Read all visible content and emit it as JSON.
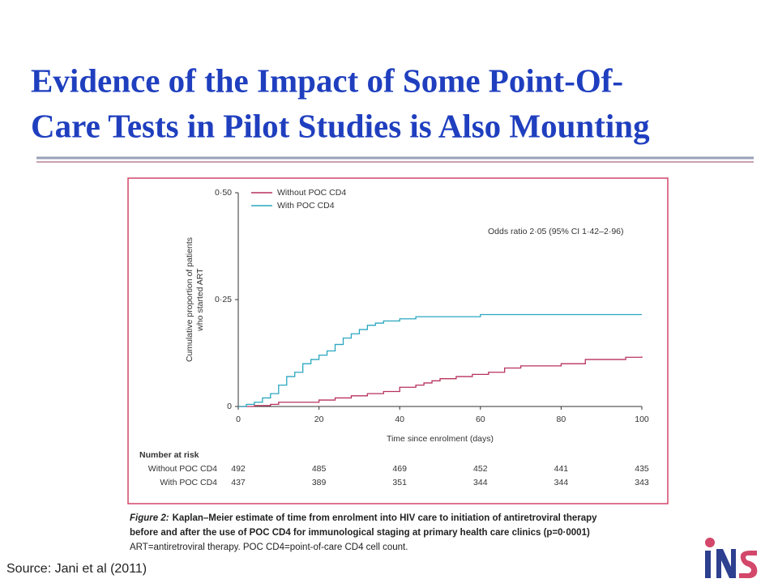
{
  "slide": {
    "title_lines": [
      "Evidence of the Impact of Some Point-Of-",
      "Care Tests in Pilot Studies is Also Mounting"
    ],
    "source": "Source: Jani et al (2011)"
  },
  "chart_data": {
    "type": "line",
    "step": true,
    "xlabel": "Time since enrolment (days)",
    "ylabel_lines": [
      "Cumulative proportion of patients",
      "who started ART"
    ],
    "annotation": "Odds ratio 2·05 (95% CI 1·42–2·96)",
    "legend": "top-left",
    "xlim": [
      0,
      100
    ],
    "ylim": [
      0,
      0.5
    ],
    "xticks": [
      0,
      20,
      40,
      60,
      80,
      100
    ],
    "yticks": [
      {
        "value": 0,
        "label": "0"
      },
      {
        "value": 0.25,
        "label": "0·25"
      },
      {
        "value": 0.5,
        "label": "0·50"
      }
    ],
    "series": [
      {
        "name": "Without POC CD4",
        "color": "#b8325c",
        "x": [
          0,
          4,
          8,
          10,
          20,
          24,
          28,
          32,
          36,
          40,
          44,
          46,
          48,
          50,
          54,
          58,
          62,
          66,
          70,
          80,
          86,
          96,
          100
        ],
        "values": [
          0,
          0.002,
          0.005,
          0.01,
          0.015,
          0.02,
          0.025,
          0.03,
          0.035,
          0.045,
          0.05,
          0.055,
          0.06,
          0.065,
          0.07,
          0.075,
          0.08,
          0.09,
          0.095,
          0.1,
          0.11,
          0.115,
          0.117
        ]
      },
      {
        "name": "With POC CD4",
        "color": "#2aa7c0",
        "x": [
          0,
          2,
          4,
          6,
          8,
          10,
          12,
          14,
          16,
          18,
          20,
          22,
          24,
          26,
          28,
          30,
          32,
          34,
          36,
          40,
          44,
          50,
          60,
          100
        ],
        "values": [
          0,
          0.005,
          0.01,
          0.02,
          0.03,
          0.05,
          0.07,
          0.08,
          0.1,
          0.11,
          0.12,
          0.13,
          0.145,
          0.16,
          0.17,
          0.18,
          0.19,
          0.195,
          0.2,
          0.205,
          0.21,
          0.21,
          0.215,
          0.215
        ]
      }
    ],
    "risk_table": {
      "title": "Number at risk",
      "rows": [
        {
          "name": "Without POC CD4",
          "values": [
            492,
            485,
            469,
            452,
            441,
            435
          ]
        },
        {
          "name": "With POC CD4",
          "values": [
            437,
            389,
            351,
            344,
            344,
            343
          ]
        }
      ]
    },
    "figure_label": "Figure 2:",
    "caption_lines": [
      "Kaplan–Meier estimate of time from enrolment into HIV care to initiation of antiretroviral therapy",
      "before and after the use of POC CD4 for immunological staging at primary health care clinics (p=0·0001)",
      "ART=antiretroviral therapy. POC CD4=point-of-care CD4 cell count."
    ]
  }
}
